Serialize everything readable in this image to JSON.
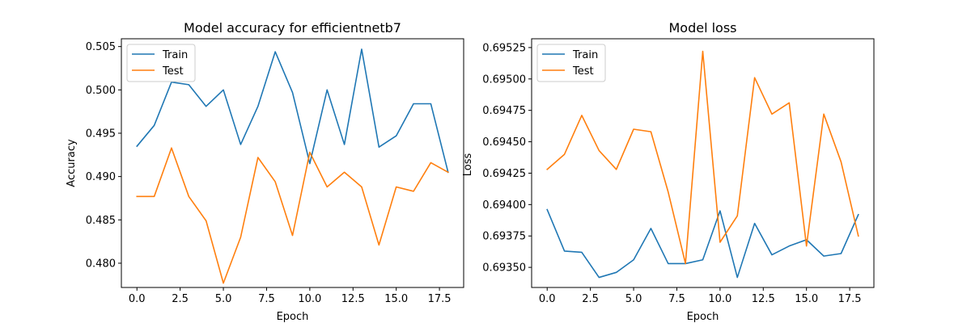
{
  "chart_data": [
    {
      "type": "line",
      "title": "Model accuracy for efficientnetb7",
      "xlabel": "Epoch",
      "ylabel": "Accuracy",
      "x": [
        0,
        1,
        2,
        3,
        4,
        5,
        6,
        7,
        8,
        9,
        10,
        11,
        12,
        13,
        14,
        15,
        16,
        17,
        18
      ],
      "xlim": [
        -0.9,
        18.9
      ],
      "ylim": [
        0.4772,
        0.5059
      ],
      "xticks": [
        0.0,
        2.5,
        5.0,
        7.5,
        10.0,
        12.5,
        15.0,
        17.5
      ],
      "xtick_labels": [
        "0.0",
        "2.5",
        "5.0",
        "7.5",
        "10.0",
        "12.5",
        "15.0",
        "17.5"
      ],
      "yticks": [
        0.48,
        0.485,
        0.49,
        0.495,
        0.5,
        0.505
      ],
      "ytick_labels": [
        "0.480",
        "0.485",
        "0.490",
        "0.495",
        "0.500",
        "0.505"
      ],
      "legend": "upper left",
      "grid": false,
      "series": [
        {
          "name": "Train",
          "color": "#1f77b4",
          "values": [
            0.4935,
            0.4959,
            0.5009,
            0.5006,
            0.4981,
            0.5,
            0.4937,
            0.4981,
            0.5044,
            0.4997,
            0.4915,
            0.5,
            0.4937,
            0.5047,
            0.4934,
            0.4947,
            0.4984,
            0.4984,
            0.4905
          ]
        },
        {
          "name": "Test",
          "color": "#ff7f0e",
          "values": [
            0.4877,
            0.4877,
            0.4933,
            0.4877,
            0.4849,
            0.4777,
            0.483,
            0.4922,
            0.4894,
            0.4832,
            0.4928,
            0.4888,
            0.4905,
            0.4888,
            0.4821,
            0.4888,
            0.4883,
            0.4916,
            0.4905
          ]
        }
      ]
    },
    {
      "type": "line",
      "title": "Model loss",
      "xlabel": "Epoch",
      "ylabel": "Loss",
      "x": [
        0,
        1,
        2,
        3,
        4,
        5,
        6,
        7,
        8,
        9,
        10,
        11,
        12,
        13,
        14,
        15,
        16,
        17,
        18
      ],
      "xlim": [
        -0.9,
        18.9
      ],
      "ylim": [
        0.69334,
        0.69532
      ],
      "xticks": [
        0.0,
        2.5,
        5.0,
        7.5,
        10.0,
        12.5,
        15.0,
        17.5
      ],
      "xtick_labels": [
        "0.0",
        "2.5",
        "5.0",
        "7.5",
        "10.0",
        "12.5",
        "15.0",
        "17.5"
      ],
      "yticks": [
        0.6935,
        0.69375,
        0.694,
        0.69425,
        0.6945,
        0.69475,
        0.695,
        0.69525
      ],
      "ytick_labels": [
        "0.69350",
        "0.69375",
        "0.69400",
        "0.69425",
        "0.69450",
        "0.69475",
        "0.69500",
        "0.69525"
      ],
      "legend": "upper left",
      "grid": false,
      "series": [
        {
          "name": "Train",
          "color": "#1f77b4",
          "values": [
            0.69396,
            0.69363,
            0.69362,
            0.69342,
            0.69346,
            0.69356,
            0.69381,
            0.69353,
            0.69353,
            0.69356,
            0.69395,
            0.69342,
            0.69385,
            0.6936,
            0.69367,
            0.69372,
            0.69359,
            0.69361,
            0.69392
          ]
        },
        {
          "name": "Test",
          "color": "#ff7f0e",
          "values": [
            0.69428,
            0.6944,
            0.69471,
            0.69443,
            0.69428,
            0.6946,
            0.69458,
            0.6941,
            0.69353,
            0.69522,
            0.6937,
            0.69391,
            0.69501,
            0.69472,
            0.69481,
            0.69367,
            0.69472,
            0.69434,
            0.69375
          ]
        }
      ]
    }
  ]
}
